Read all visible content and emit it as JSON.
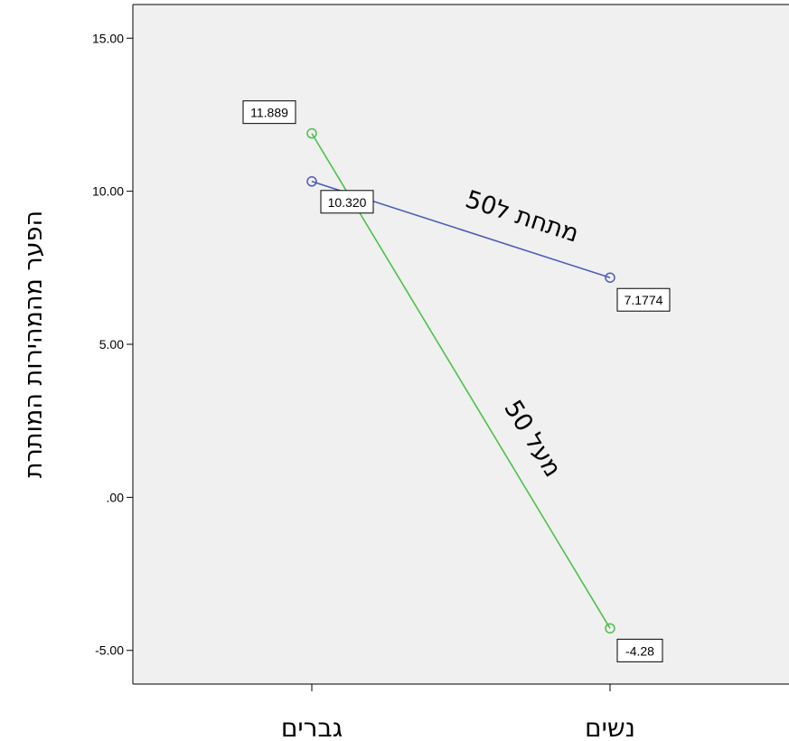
{
  "chart_data": {
    "type": "line",
    "title": "",
    "xlabel": "",
    "ylabel": "הפער מהמהירות המותרת",
    "categories": [
      "גברים",
      "נשים"
    ],
    "ylim": [
      -6.1,
      16.1
    ],
    "yticks": [
      15,
      10,
      5,
      0,
      -5
    ],
    "ytick_labels": [
      "15.00",
      "10.00",
      "5.00",
      ".00",
      "-5.00"
    ],
    "grid": false,
    "background": "#f0f0f0",
    "series": [
      {
        "name": "מתחת ל50",
        "values": [
          10.32,
          7.1774
        ],
        "data_labels": [
          "10.320",
          "7.1774"
        ],
        "color": "#4d5cb8"
      },
      {
        "name": "מעל 50",
        "values": [
          11.889,
          -4.28
        ],
        "data_labels": [
          "11.889",
          "-4.28"
        ],
        "color": "#4cc04c"
      }
    ]
  }
}
